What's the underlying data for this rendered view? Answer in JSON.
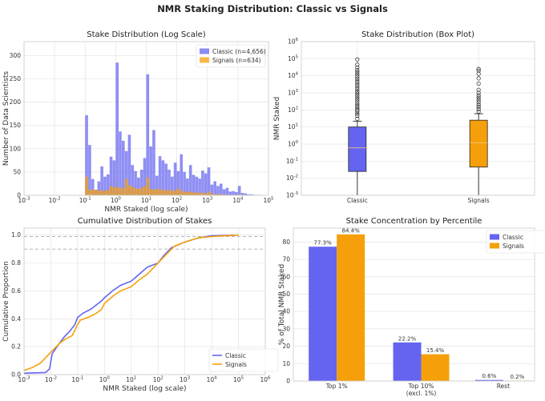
{
  "figure": {
    "title": "NMR Staking Distribution: Classic vs Signals"
  },
  "colors": {
    "classic": "#6464f0",
    "signals": "#f5a00a",
    "grid": "#e3e3e3",
    "axis": "#cccccc"
  },
  "chart_data": [
    {
      "type": "histogram",
      "title": "Stake Distribution (Log Scale)",
      "xlabel": "NMR Staked (log scale)",
      "ylabel": "Number of Data Scientists",
      "x_scale": "log",
      "xlim_log10": [
        -3,
        5
      ],
      "xticks": [
        "10^-3",
        "10^-2",
        "10^-1",
        "10^0",
        "10^1",
        "10^2",
        "10^3",
        "10^4",
        "10^5"
      ],
      "yticks": [
        "0",
        "50",
        "100",
        "150",
        "200",
        "250",
        "300"
      ],
      "ylim": [
        0,
        330
      ],
      "bin_width_log10": 0.1,
      "legend": {
        "position": "top-right",
        "labels": [
          "Classic (n=4,656)",
          "Signals (n=634)"
        ]
      },
      "series": [
        {
          "name": "Classic",
          "color": "#6464f0",
          "bins": [
            [
              -1.0,
              172
            ],
            [
              -0.9,
              108
            ],
            [
              -0.8,
              35
            ],
            [
              -0.7,
              12
            ],
            [
              -0.6,
              30
            ],
            [
              -0.5,
              62
            ],
            [
              -0.4,
              40
            ],
            [
              -0.3,
              45
            ],
            [
              -0.2,
              83
            ],
            [
              -0.1,
              75
            ],
            [
              0.0,
              285
            ],
            [
              0.1,
              137
            ],
            [
              0.2,
              117
            ],
            [
              0.3,
              95
            ],
            [
              0.4,
              130
            ],
            [
              0.5,
              65
            ],
            [
              0.6,
              52
            ],
            [
              0.7,
              38
            ],
            [
              0.8,
              55
            ],
            [
              0.9,
              80
            ],
            [
              1.0,
              260
            ],
            [
              1.1,
              105
            ],
            [
              1.2,
              140
            ],
            [
              1.3,
              42
            ],
            [
              1.4,
              84
            ],
            [
              1.5,
              75
            ],
            [
              1.6,
              68
            ],
            [
              1.7,
              55
            ],
            [
              1.8,
              40
            ],
            [
              1.9,
              70
            ],
            [
              2.0,
              52
            ],
            [
              2.1,
              88
            ],
            [
              2.2,
              50
            ],
            [
              2.3,
              36
            ],
            [
              2.4,
              65
            ],
            [
              2.5,
              44
            ],
            [
              2.6,
              40
            ],
            [
              2.7,
              36
            ],
            [
              2.8,
              53
            ],
            [
              2.9,
              47
            ],
            [
              3.0,
              60
            ],
            [
              3.1,
              23
            ],
            [
              3.2,
              30
            ],
            [
              3.3,
              20
            ],
            [
              3.4,
              25
            ],
            [
              3.5,
              13
            ],
            [
              3.6,
              16
            ],
            [
              3.7,
              8
            ],
            [
              3.8,
              9
            ],
            [
              3.9,
              7
            ],
            [
              4.0,
              20
            ],
            [
              4.1,
              5
            ],
            [
              4.2,
              4
            ],
            [
              4.3,
              2
            ],
            [
              4.4,
              2
            ],
            [
              4.5,
              1
            ],
            [
              4.6,
              1
            ],
            [
              4.7,
              1
            ]
          ]
        },
        {
          "name": "Signals",
          "color": "#f5a00a",
          "bins": [
            [
              -1.0,
              40
            ],
            [
              -0.9,
              12
            ],
            [
              -0.8,
              12
            ],
            [
              -0.7,
              12
            ],
            [
              -0.6,
              10
            ],
            [
              -0.5,
              11
            ],
            [
              -0.4,
              9
            ],
            [
              -0.3,
              12
            ],
            [
              -0.2,
              20
            ],
            [
              -0.1,
              17
            ],
            [
              0.0,
              18
            ],
            [
              0.1,
              16
            ],
            [
              0.2,
              15
            ],
            [
              0.3,
              35
            ],
            [
              0.4,
              22
            ],
            [
              0.5,
              18
            ],
            [
              0.6,
              15
            ],
            [
              0.7,
              14
            ],
            [
              0.8,
              16
            ],
            [
              0.9,
              20
            ],
            [
              1.0,
              38
            ],
            [
              1.1,
              14
            ],
            [
              1.2,
              12
            ],
            [
              1.3,
              14
            ],
            [
              1.4,
              13
            ],
            [
              1.5,
              12
            ],
            [
              1.6,
              11
            ],
            [
              1.7,
              10
            ],
            [
              1.8,
              12
            ],
            [
              1.9,
              9
            ],
            [
              2.0,
              15
            ],
            [
              2.1,
              10
            ],
            [
              2.2,
              8
            ],
            [
              2.3,
              7
            ],
            [
              2.4,
              8
            ],
            [
              2.5,
              6
            ],
            [
              2.6,
              6
            ],
            [
              2.7,
              5
            ],
            [
              2.8,
              6
            ],
            [
              2.9,
              4
            ],
            [
              3.0,
              8
            ],
            [
              3.1,
              3
            ],
            [
              3.2,
              3
            ],
            [
              3.3,
              2
            ],
            [
              3.4,
              2
            ],
            [
              3.5,
              2
            ],
            [
              3.6,
              1
            ],
            [
              3.7,
              1
            ],
            [
              3.8,
              1
            ],
            [
              3.9,
              1
            ],
            [
              4.0,
              2
            ]
          ]
        }
      ]
    },
    {
      "type": "box",
      "title": "Stake Distribution (Box Plot)",
      "ylabel": "NMR Staked",
      "y_scale": "log",
      "ylim_log10": [
        -3,
        6
      ],
      "yticks": [
        "10^-3",
        "10^-2",
        "10^-1",
        "10^0",
        "10^1",
        "10^2",
        "10^3",
        "10^4",
        "10^5",
        "10^6"
      ],
      "categories": [
        "Classic",
        "Signals"
      ],
      "boxes": [
        {
          "name": "Classic",
          "color": "#6464f0",
          "q1": 0.025,
          "median": 0.6,
          "q3": 10,
          "whisker_low": 0.001,
          "whisker_high": 22,
          "outliers": [
            30,
            45,
            60,
            80,
            100,
            130,
            170,
            220,
            300,
            400,
            520,
            700,
            900,
            1200,
            1600,
            2100,
            2800,
            3700,
            5000,
            6600,
            8800,
            12000,
            16000,
            21000,
            30000,
            45000,
            90000
          ]
        },
        {
          "name": "Signals",
          "color": "#f5a00a",
          "q1": 0.045,
          "median": 1.2,
          "q3": 25,
          "whisker_low": 0.001,
          "whisker_high": 60,
          "outliers": [
            80,
            110,
            150,
            200,
            280,
            380,
            520,
            700,
            1000,
            1500,
            3500,
            7000,
            13000,
            20000,
            25000
          ]
        }
      ]
    },
    {
      "type": "line",
      "title": "Cumulative Distribution of Stakes",
      "xlabel": "NMR Staked (log scale)",
      "ylabel": "Cumulative Proportion",
      "x_scale": "log",
      "xlim_log10": [
        -3,
        6
      ],
      "xticks": [
        "10^-3",
        "10^-2",
        "10^-1",
        "10^0",
        "10^1",
        "10^2",
        "10^3",
        "10^4",
        "10^5",
        "10^6"
      ],
      "yticks": [
        "0.0",
        "0.2",
        "0.4",
        "0.6",
        "0.8",
        "1.0"
      ],
      "ylim": [
        0,
        1.05
      ],
      "reference_lines": [
        0.9,
        0.99
      ],
      "legend": {
        "position": "bottom-right",
        "labels": [
          "Classic",
          "Signals"
        ]
      },
      "series": [
        {
          "name": "Classic",
          "color": "#6464f0",
          "points": [
            [
              -3.0,
              0.01
            ],
            [
              -2.2,
              0.015
            ],
            [
              -2.05,
              0.04
            ],
            [
              -1.95,
              0.15
            ],
            [
              -1.7,
              0.22
            ],
            [
              -1.5,
              0.27
            ],
            [
              -1.3,
              0.31
            ],
            [
              -1.1,
              0.36
            ],
            [
              -1.0,
              0.41
            ],
            [
              -0.8,
              0.44
            ],
            [
              -0.5,
              0.47
            ],
            [
              -0.3,
              0.5
            ],
            [
              -0.1,
              0.53
            ],
            [
              0.0,
              0.55
            ],
            [
              0.3,
              0.6
            ],
            [
              0.6,
              0.64
            ],
            [
              1.0,
              0.67
            ],
            [
              1.3,
              0.72
            ],
            [
              1.6,
              0.77
            ],
            [
              2.0,
              0.8
            ],
            [
              2.2,
              0.85
            ],
            [
              2.5,
              0.91
            ],
            [
              3.0,
              0.95
            ],
            [
              3.5,
              0.98
            ],
            [
              4.0,
              0.995
            ],
            [
              5.0,
              1.0
            ]
          ]
        },
        {
          "name": "Signals",
          "color": "#f5a00a",
          "points": [
            [
              -3.0,
              0.03
            ],
            [
              -2.7,
              0.05
            ],
            [
              -2.4,
              0.08
            ],
            [
              -2.0,
              0.16
            ],
            [
              -1.7,
              0.22
            ],
            [
              -1.5,
              0.25
            ],
            [
              -1.2,
              0.28
            ],
            [
              -1.0,
              0.36
            ],
            [
              -0.9,
              0.39
            ],
            [
              -0.6,
              0.41
            ],
            [
              -0.3,
              0.44
            ],
            [
              -0.1,
              0.47
            ],
            [
              0.0,
              0.51
            ],
            [
              0.3,
              0.56
            ],
            [
              0.6,
              0.6
            ],
            [
              1.0,
              0.63
            ],
            [
              1.3,
              0.68
            ],
            [
              1.6,
              0.72
            ],
            [
              2.0,
              0.8
            ],
            [
              2.3,
              0.86
            ],
            [
              2.6,
              0.92
            ],
            [
              3.0,
              0.95
            ],
            [
              3.5,
              0.98
            ],
            [
              4.0,
              0.99
            ],
            [
              5.0,
              1.0
            ]
          ]
        }
      ]
    },
    {
      "type": "bar",
      "title": "Stake Concentration by Percentile",
      "ylabel": "% of Total NMR Staked",
      "categories": [
        [
          "Top 1%"
        ],
        [
          "Top 10%",
          "(excl. 1%)"
        ],
        [
          "Rest"
        ]
      ],
      "yticks": [
        "0",
        "10",
        "20",
        "30",
        "40",
        "50",
        "60",
        "70",
        "80"
      ],
      "ylim": [
        0,
        88
      ],
      "legend": {
        "position": "top-right",
        "labels": [
          "Classic",
          "Signals"
        ]
      },
      "series": [
        {
          "name": "Classic",
          "color": "#6464f0",
          "values": [
            77.3,
            22.2,
            0.6
          ],
          "labels": [
            "77.3%",
            "22.2%",
            "0.6%"
          ]
        },
        {
          "name": "Signals",
          "color": "#f5a00a",
          "values": [
            84.4,
            15.4,
            0.2
          ],
          "labels": [
            "84.4%",
            "15.4%",
            "0.2%"
          ]
        }
      ]
    }
  ]
}
